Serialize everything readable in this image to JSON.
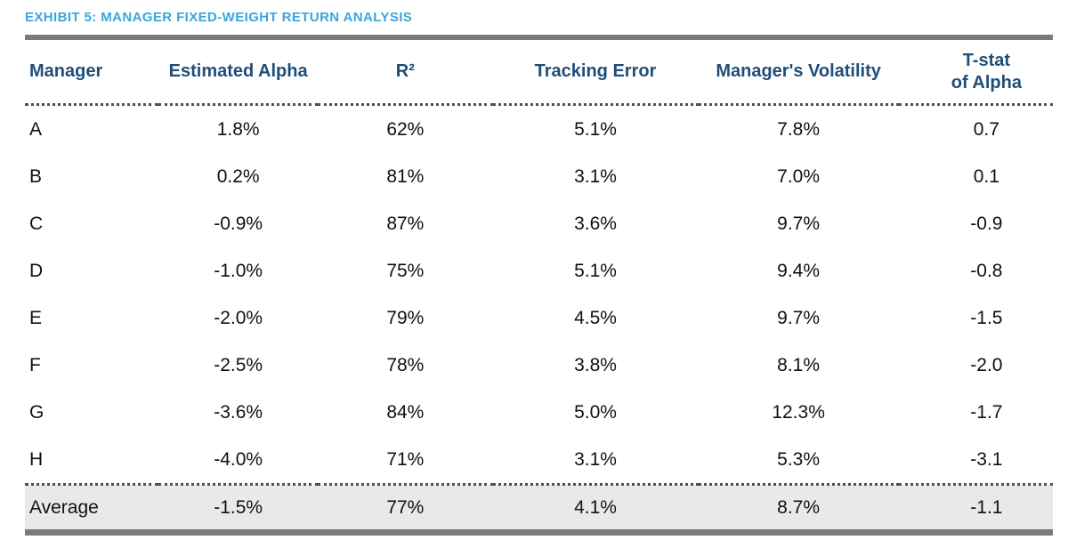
{
  "page": {
    "title": "EXHIBIT 5: MANAGER FIXED-WEIGHT RETURN ANALYSIS"
  },
  "chart_data": {
    "type": "table",
    "title": "EXHIBIT 5: MANAGER FIXED-WEIGHT RETURN ANALYSIS",
    "columns": [
      "Manager",
      "Estimated Alpha",
      "R²",
      "Tracking Error",
      "Manager's Volatility",
      "T-stat of Alpha"
    ],
    "header_display": [
      "Manager",
      "Estimated Alpha",
      "R²",
      "Tracking Error",
      "Manager's Volatility",
      "T-stat\nof Alpha"
    ],
    "rows": [
      [
        "A",
        "1.8%",
        "62%",
        "5.1%",
        "7.8%",
        "0.7"
      ],
      [
        "B",
        "0.2%",
        "81%",
        "3.1%",
        "7.0%",
        "0.1"
      ],
      [
        "C",
        "-0.9%",
        "87%",
        "3.6%",
        "9.7%",
        "-0.9"
      ],
      [
        "D",
        "-1.0%",
        "75%",
        "5.1%",
        "9.4%",
        "-0.8"
      ],
      [
        "E",
        "-2.0%",
        "79%",
        "4.5%",
        "9.7%",
        "-1.5"
      ],
      [
        "F",
        "-2.5%",
        "78%",
        "3.8%",
        "8.1%",
        "-2.0"
      ],
      [
        "G",
        "-3.6%",
        "84%",
        "5.0%",
        "12.3%",
        "-1.7"
      ],
      [
        "H",
        "-4.0%",
        "71%",
        "3.1%",
        "5.3%",
        "-3.1"
      ]
    ],
    "footer": [
      "Average",
      "-1.5%",
      "77%",
      "4.1%",
      "8.7%",
      "-1.1"
    ]
  },
  "colors": {
    "title_text": "#3BA6D9",
    "header_text": "#1F4E79",
    "body_text": "#111111",
    "thick_bar": "#7A7A7A",
    "dotted_divider": "#4F4F4F",
    "average_row_bg": "#E9E9E9",
    "background": "#FFFFFF"
  }
}
